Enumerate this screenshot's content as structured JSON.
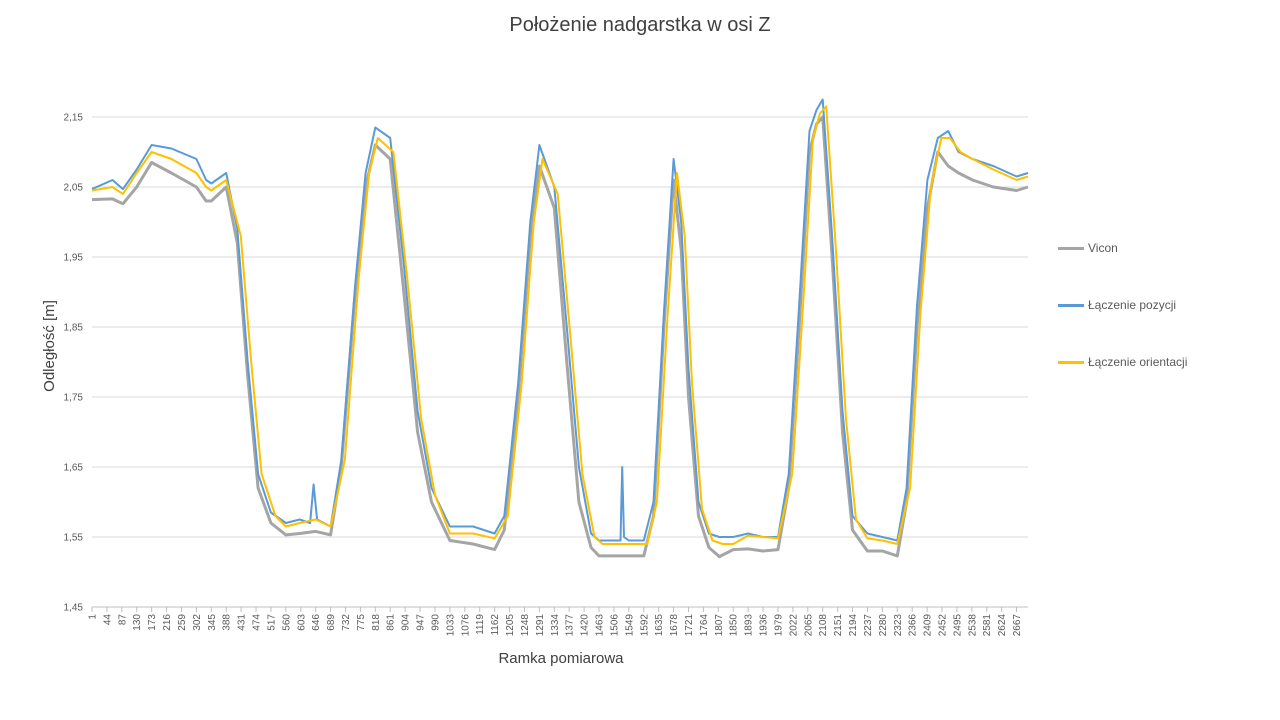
{
  "chart_data": {
    "type": "line",
    "title": "Położenie nadgarstka w osi Z",
    "xlabel": "Ramka pomiarowa",
    "ylabel": "Odległość [m]",
    "ylim": [
      1.45,
      2.15
    ],
    "yticks": [
      "1,45",
      "1,55",
      "1,65",
      "1,75",
      "1,85",
      "1,95",
      "2,05",
      "2,15"
    ],
    "x_range": [
      1,
      2700
    ],
    "x_tick_labels": [
      "1",
      "44",
      "87",
      "130",
      "173",
      "216",
      "259",
      "302",
      "345",
      "388",
      "431",
      "474",
      "517",
      "560",
      "603",
      "646",
      "689",
      "732",
      "775",
      "818",
      "861",
      "904",
      "947",
      "990",
      "1033",
      "1076",
      "1119",
      "1162",
      "1205",
      "1248",
      "1291",
      "1334",
      "1377",
      "1420",
      "1463",
      "1506",
      "1549",
      "1592",
      "1635",
      "1678",
      "1721",
      "1764",
      "1807",
      "1850",
      "1893",
      "1936",
      "1979",
      "2022",
      "2065",
      "2108",
      "2151",
      "2194",
      "2237",
      "2280",
      "2323",
      "2366",
      "2409",
      "2452",
      "2495",
      "2538",
      "2581",
      "2624",
      "2667"
    ],
    "grid": "horizontal",
    "legend_position": "right",
    "series": [
      {
        "name": "Vicon",
        "color": "#a5a5a5",
        "x": [
          1,
          60,
          90,
          130,
          173,
          230,
          302,
          330,
          345,
          388,
          420,
          450,
          480,
          517,
          560,
          600,
          646,
          689,
          720,
          760,
          790,
          818,
          861,
          900,
          940,
          980,
          1033,
          1100,
          1162,
          1190,
          1230,
          1265,
          1291,
          1334,
          1370,
          1405,
          1440,
          1463,
          1506,
          1549,
          1592,
          1620,
          1650,
          1678,
          1700,
          1721,
          1750,
          1780,
          1810,
          1850,
          1893,
          1936,
          1979,
          2010,
          2040,
          2070,
          2090,
          2108,
          2135,
          2165,
          2194,
          2237,
          2280,
          2323,
          2350,
          2380,
          2410,
          2440,
          2470,
          2500,
          2540,
          2600,
          2667,
          2700
        ],
        "values": [
          2.032,
          2.033,
          2.026,
          2.05,
          2.085,
          2.07,
          2.05,
          2.03,
          2.03,
          2.05,
          1.97,
          1.78,
          1.62,
          1.57,
          1.553,
          1.555,
          1.558,
          1.553,
          1.65,
          1.9,
          2.05,
          2.11,
          2.09,
          1.9,
          1.7,
          1.6,
          1.545,
          1.54,
          1.532,
          1.56,
          1.75,
          1.98,
          2.08,
          2.02,
          1.8,
          1.6,
          1.535,
          1.523,
          1.523,
          1.523,
          1.523,
          1.58,
          1.85,
          2.06,
          1.96,
          1.75,
          1.58,
          1.535,
          1.522,
          1.532,
          1.533,
          1.53,
          1.532,
          1.62,
          1.85,
          2.1,
          2.14,
          2.15,
          1.95,
          1.7,
          1.56,
          1.53,
          1.53,
          1.523,
          1.6,
          1.85,
          2.02,
          2.1,
          2.08,
          2.07,
          2.06,
          2.05,
          2.045,
          2.05
        ]
      },
      {
        "name": "Łączenie pozycji",
        "color": "#5b9bd5",
        "x": [
          1,
          60,
          90,
          130,
          173,
          230,
          302,
          330,
          345,
          388,
          420,
          450,
          480,
          517,
          560,
          600,
          630,
          640,
          650,
          689,
          720,
          760,
          790,
          818,
          861,
          900,
          940,
          980,
          1033,
          1100,
          1162,
          1190,
          1230,
          1265,
          1291,
          1334,
          1370,
          1405,
          1440,
          1463,
          1506,
          1525,
          1530,
          1535,
          1549,
          1592,
          1620,
          1650,
          1678,
          1700,
          1721,
          1750,
          1780,
          1810,
          1850,
          1893,
          1936,
          1979,
          2010,
          2040,
          2070,
          2090,
          2108,
          2135,
          2165,
          2194,
          2237,
          2280,
          2323,
          2350,
          2380,
          2410,
          2440,
          2470,
          2500,
          2540,
          2600,
          2667,
          2700
        ],
        "values": [
          2.047,
          2.06,
          2.047,
          2.075,
          2.11,
          2.105,
          2.09,
          2.06,
          2.055,
          2.07,
          1.99,
          1.8,
          1.64,
          1.585,
          1.57,
          1.575,
          1.57,
          1.625,
          1.575,
          1.565,
          1.66,
          1.91,
          2.07,
          2.135,
          2.12,
          1.94,
          1.73,
          1.62,
          1.565,
          1.565,
          1.555,
          1.58,
          1.77,
          2.0,
          2.11,
          2.05,
          1.85,
          1.65,
          1.555,
          1.545,
          1.545,
          1.545,
          1.65,
          1.55,
          1.545,
          1.545,
          1.6,
          1.87,
          2.09,
          2.0,
          1.79,
          1.6,
          1.555,
          1.55,
          1.55,
          1.555,
          1.55,
          1.55,
          1.64,
          1.88,
          2.13,
          2.16,
          2.175,
          1.98,
          1.73,
          1.58,
          1.555,
          1.55,
          1.545,
          1.62,
          1.88,
          2.06,
          2.12,
          2.13,
          2.1,
          2.09,
          2.08,
          2.065,
          2.07
        ]
      },
      {
        "name": "Łączenie orientacji",
        "color": "#ffc000",
        "x": [
          1,
          60,
          90,
          130,
          173,
          230,
          302,
          330,
          345,
          388,
          430,
          460,
          490,
          530,
          560,
          600,
          646,
          689,
          730,
          770,
          800,
          825,
          870,
          910,
          950,
          990,
          1033,
          1100,
          1162,
          1200,
          1240,
          1275,
          1300,
          1344,
          1380,
          1415,
          1450,
          1473,
          1516,
          1559,
          1602,
          1630,
          1660,
          1688,
          1710,
          1731,
          1760,
          1790,
          1820,
          1850,
          1893,
          1936,
          1979,
          2020,
          2050,
          2080,
          2100,
          2118,
          2145,
          2175,
          2204,
          2237,
          2280,
          2323,
          2360,
          2390,
          2420,
          2450,
          2475,
          2505,
          2540,
          2600,
          2667,
          2700
        ],
        "values": [
          2.045,
          2.05,
          2.04,
          2.07,
          2.1,
          2.09,
          2.07,
          2.05,
          2.045,
          2.06,
          1.98,
          1.8,
          1.64,
          1.58,
          1.565,
          1.57,
          1.575,
          1.565,
          1.66,
          1.92,
          2.07,
          2.12,
          2.1,
          1.92,
          1.72,
          1.61,
          1.555,
          1.555,
          1.548,
          1.58,
          1.77,
          2.0,
          2.09,
          2.04,
          1.84,
          1.64,
          1.55,
          1.54,
          1.54,
          1.54,
          1.54,
          1.6,
          1.86,
          2.07,
          1.98,
          1.77,
          1.59,
          1.545,
          1.54,
          1.54,
          1.552,
          1.55,
          1.548,
          1.64,
          1.87,
          2.12,
          2.155,
          2.165,
          1.97,
          1.72,
          1.575,
          1.548,
          1.545,
          1.54,
          1.62,
          1.87,
          2.05,
          2.12,
          2.12,
          2.1,
          2.09,
          2.075,
          2.06,
          2.065
        ]
      }
    ]
  }
}
